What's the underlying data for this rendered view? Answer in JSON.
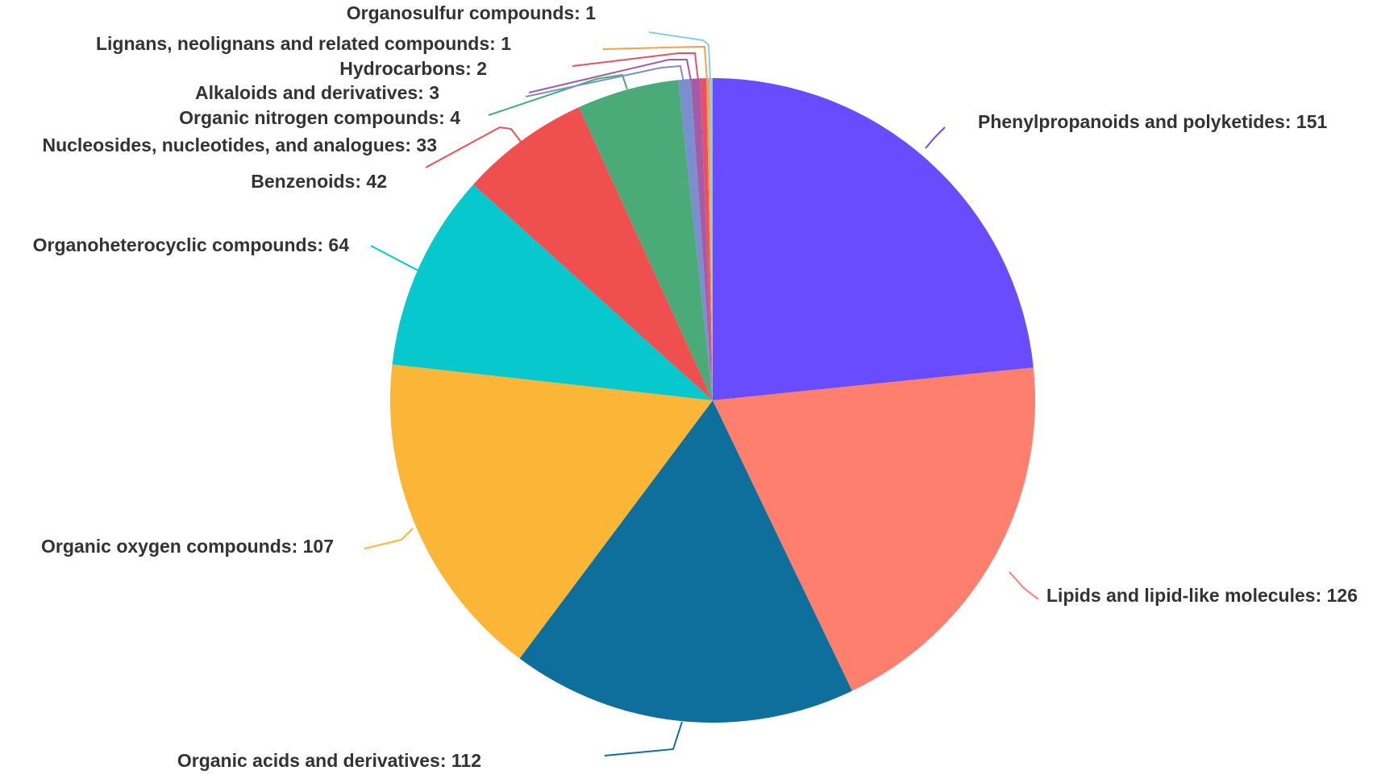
{
  "chart_data": {
    "type": "pie",
    "title": "",
    "label_format": "{name}: {value}",
    "slices": [
      {
        "name": "Phenylpropanoids and polyketides",
        "value": 151,
        "color": "#6a4cff"
      },
      {
        "name": "Lipids and lipid-like molecules",
        "value": 126,
        "color": "#ff7f6e"
      },
      {
        "name": "Organic acids and derivatives",
        "value": 112,
        "color": "#0e6e9c"
      },
      {
        "name": "Organic oxygen compounds",
        "value": 107,
        "color": "#fbb637"
      },
      {
        "name": "Organoheterocyclic compounds",
        "value": 64,
        "color": "#07c8cc"
      },
      {
        "name": "Benzenoids",
        "value": 42,
        "color": "#ef4f4e"
      },
      {
        "name": "Nucleosides, nucleotides, and analogues",
        "value": 33,
        "color": "#4bab78"
      },
      {
        "name": "Organic nitrogen compounds",
        "value": 4,
        "color": "#7b8fd0"
      },
      {
        "name": "Alkaloids and derivatives",
        "value": 3,
        "color": "#a55ca5"
      },
      {
        "name": "Hydrocarbons",
        "value": 2,
        "color": "#e8506a"
      },
      {
        "name": "Lignans, neolignans and related compounds",
        "value": 1,
        "color": "#f6a04d"
      },
      {
        "name": "Organosulfur compounds",
        "value": 1,
        "color": "#8ecbe0"
      }
    ]
  }
}
